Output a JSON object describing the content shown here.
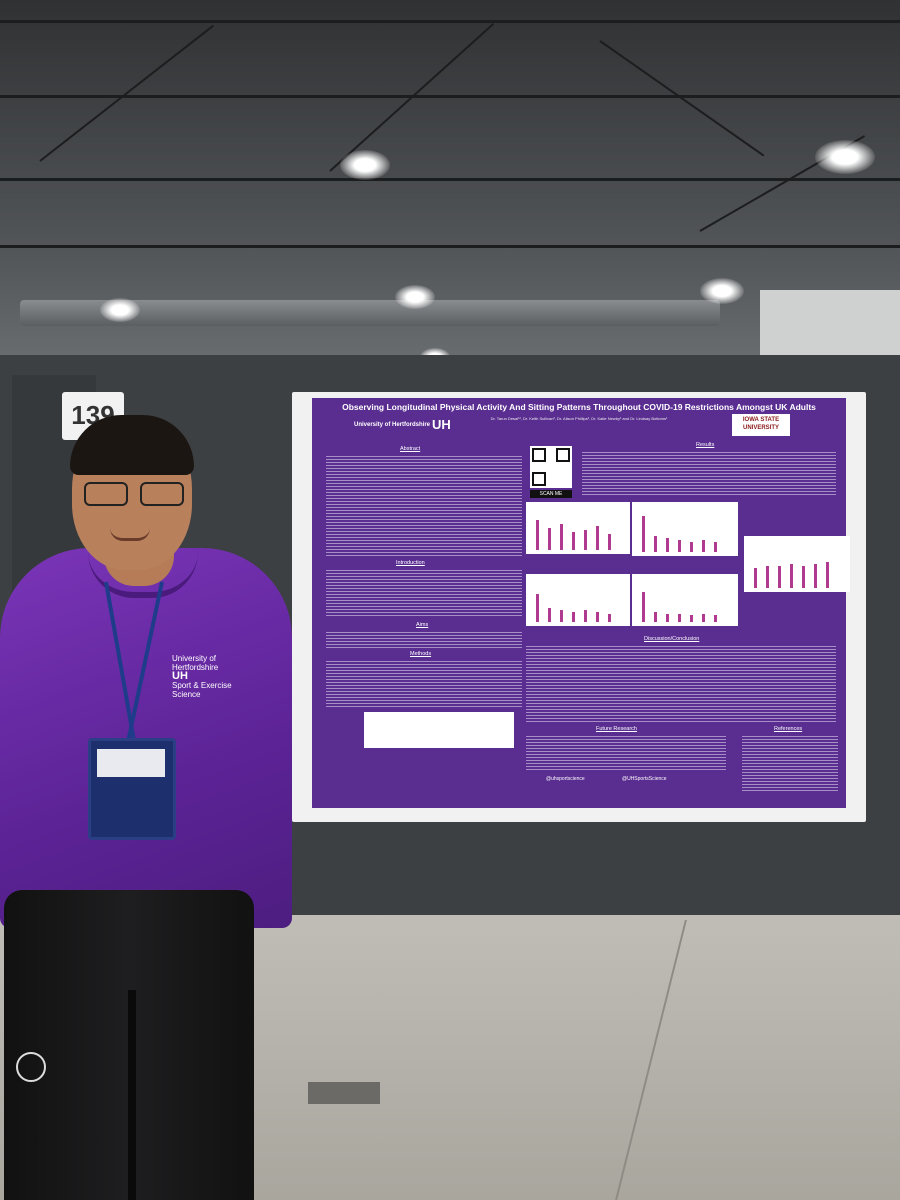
{
  "scene": {
    "description_free": true,
    "colors": {
      "poster_purple": "#5a2d91",
      "shirt_purple": "#6a2aa8",
      "wall_gray": "#3d4043",
      "floor": "#b8b6af"
    }
  },
  "booth": {
    "number": "139"
  },
  "poster": {
    "title": "Observing Longitudinal Physical Activity And Sitting Patterns Throughout COVID-19 Restrictions Amongst UK Adults",
    "authors": "Dr. Tarun Desai¹², Dr. Keith Sullivan², Dr. Alison Phillips², Dr. Katie Newby¹ and Dr. Lindsay Bottoms¹",
    "left_logo_small": "University of Hertfordshire",
    "left_logo_big": "UH",
    "right_logo": "IOWA STATE UNIVERSITY",
    "qr_label": "SCAN ME",
    "sections": {
      "abstract": "Abstract",
      "introduction": "Introduction",
      "aims": "Aims",
      "methods": "Methods",
      "results": "Results",
      "discussion": "Discussion/Conclusion",
      "future": "Future Research",
      "references": "References"
    },
    "social_instagram": "@uhsportscience",
    "social_twitter": "@UHSportsScience"
  },
  "shirt": {
    "logo_line1": "University of",
    "logo_line2": "Hertfordshire",
    "logo_big": "UH",
    "logo_line3": "Sport & Exercise",
    "logo_line4": "Science"
  }
}
